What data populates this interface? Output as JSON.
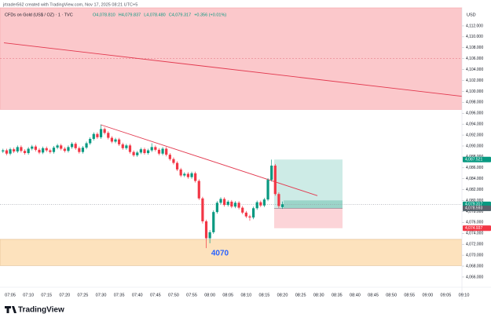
{
  "chart_data": {
    "type": "candlestick",
    "header": "jrtrader562 created with TradingView.com, Nov 17, 2025 08:21 UTC+5",
    "title": "CFDs on Gold (US$ / OZ) · 1 · TVC",
    "ohlc_labels": [
      "O4,078.810",
      "H4,079.837",
      "L4,078.480",
      "C4,079.317",
      "+0.356 (+0.01%)"
    ],
    "currency": "USD",
    "brand": "TradingView",
    "up_color": "#089981",
    "down_color": "#f23645",
    "categories": [
      null,
      null,
      "07:05",
      null,
      null,
      null,
      null,
      "07:10",
      null,
      null,
      null,
      null,
      "07:15",
      null,
      null,
      null,
      null,
      "07:20",
      null,
      null,
      null,
      null,
      "07:25",
      null,
      null,
      null,
      null,
      "07:30",
      null,
      null,
      null,
      null,
      "07:35",
      null,
      null,
      null,
      null,
      "07:40",
      null,
      null,
      null,
      null,
      "07:45",
      null,
      null,
      null,
      null,
      "07:50",
      null,
      null,
      null,
      null,
      "07:55",
      null,
      null,
      null,
      null,
      "08:00",
      null,
      null,
      null,
      null,
      "08:05",
      null,
      null,
      null,
      null,
      "08:10",
      null,
      null,
      null,
      null,
      "08:15",
      null,
      null,
      null,
      null,
      "08:20",
      null,
      null,
      null,
      null,
      "08:25",
      null,
      null,
      null,
      null,
      "08:30",
      null,
      null,
      null,
      null,
      "08:35",
      null,
      null,
      null,
      null,
      "08:40",
      null,
      null,
      null,
      null,
      "08:45",
      null,
      null,
      null,
      null,
      "08:50",
      null,
      null,
      null,
      null,
      "08:55",
      null,
      null,
      null,
      null,
      "09:00",
      null,
      null,
      null,
      null,
      "09:05",
      null,
      null,
      null,
      null,
      "09:10"
    ],
    "open": [
      4089.0,
      4089.2,
      4088.6,
      4089.4,
      4089.0,
      4089.8,
      4089.1,
      4088.7,
      4089.5,
      4089.9,
      4089.3,
      4088.8,
      4089.6,
      4089.2,
      4088.9,
      4089.7,
      4090.1,
      4089.5,
      4089.1,
      4089.8,
      4090.4,
      4089.6,
      4088.9,
      4089.7,
      4090.5,
      4091.3,
      4092.2,
      4091.6,
      4093.1,
      4092.4,
      4091.5,
      4090.8,
      4091.2,
      4090.3,
      4089.6,
      4090.1,
      4088.9,
      4088.3,
      4088.8,
      4089.4,
      4088.7,
      4089.2,
      4089.8,
      4089.3,
      4088.6,
      4089.5,
      4088.4,
      4087.6,
      4086.9,
      4085.7,
      4084.6,
      4084.9,
      4084.3,
      4085.0,
      4083.6,
      4080.4,
      4076.2,
      4073.1,
      4074.2,
      4077.9,
      4079.6,
      4080.3,
      4079.2,
      4079.8,
      4078.9,
      4079.6,
      4078.7,
      4077.8,
      4077.1,
      4076.9,
      4078.6,
      4079.7,
      4079.1,
      4080.2,
      4083.8,
      4086.4,
      4081.2,
      4078.81,
      null,
      null,
      null,
      null,
      null,
      null,
      null,
      null,
      null,
      null,
      null,
      null,
      null,
      null,
      null,
      null,
      null,
      null,
      null,
      null,
      null,
      null,
      null,
      null,
      null,
      null,
      null,
      null,
      null,
      null,
      null,
      null,
      null,
      null,
      null,
      null,
      null,
      null,
      null,
      null,
      null,
      null,
      null,
      null,
      null,
      null,
      null,
      null,
      null,
      null
    ],
    "high": [
      4089.5,
      4089.5,
      4089.7,
      4089.7,
      4090.1,
      4090.1,
      4089.4,
      4089.8,
      4090.2,
      4090.2,
      4089.6,
      4089.9,
      4089.9,
      4089.5,
      4090.0,
      4090.4,
      4090.4,
      4089.8,
      4090.1,
      4090.7,
      4090.7,
      4089.9,
      4090.0,
      4090.8,
      4091.6,
      4092.5,
      4092.5,
      4093.9,
      4093.4,
      4092.7,
      4091.8,
      4091.5,
      4091.5,
      4090.6,
      4090.4,
      4090.4,
      4089.2,
      4089.1,
      4089.7,
      4089.7,
      4089.5,
      4090.5,
      4090.1,
      4089.6,
      4089.8,
      4089.8,
      4088.7,
      4087.9,
      4087.2,
      4086.0,
      4085.2,
      4085.2,
      4085.3,
      4085.3,
      4083.9,
      4080.7,
      4076.5,
      4074.6,
      4078.2,
      4079.9,
      4080.6,
      4080.6,
      4080.1,
      4080.1,
      4079.9,
      4079.9,
      4079.0,
      4078.1,
      4077.4,
      4078.9,
      4080.0,
      4080.0,
      4080.5,
      4084.1,
      4087.5,
      4086.7,
      4081.5,
      4079.837,
      null,
      null,
      null,
      null,
      null,
      null,
      null,
      null,
      null,
      null,
      null,
      null,
      null,
      null,
      null,
      null,
      null,
      null,
      null,
      null,
      null,
      null,
      null,
      null,
      null,
      null,
      null,
      null,
      null,
      null,
      null,
      null,
      null,
      null,
      null,
      null,
      null,
      null,
      null,
      null,
      null,
      null,
      null,
      null,
      null,
      null,
      null,
      null,
      null,
      null
    ],
    "low": [
      4088.7,
      4088.3,
      4088.3,
      4088.7,
      4088.7,
      4088.8,
      4088.4,
      4088.4,
      4089.2,
      4089.0,
      4088.5,
      4088.5,
      4088.9,
      4088.6,
      4088.6,
      4089.4,
      4089.2,
      4088.8,
      4088.8,
      4089.5,
      4089.3,
      4088.6,
      4088.6,
      4089.4,
      4090.2,
      4091.0,
      4091.3,
      4091.3,
      4092.1,
      4091.2,
      4090.5,
      4090.5,
      4090.0,
      4089.3,
      4089.3,
      4088.6,
      4088.0,
      4088.0,
      4088.5,
      4088.4,
      4088.4,
      4088.9,
      4089.0,
      4088.3,
      4088.3,
      4088.1,
      4087.3,
      4086.6,
      4085.4,
      4084.3,
      4084.3,
      4084.0,
      4084.0,
      4083.3,
      4080.1,
      4075.8,
      4071.3,
      4072.2,
      4073.9,
      4077.6,
      4079.3,
      4078.9,
      4078.9,
      4078.6,
      4078.6,
      4078.4,
      4077.5,
      4076.8,
      4076.3,
      4076.6,
      4078.3,
      4078.8,
      4078.8,
      4079.9,
      4083.5,
      4080.9,
      4078.6,
      4078.48,
      null,
      null,
      null,
      null,
      null,
      null,
      null,
      null,
      null,
      null,
      null,
      null,
      null,
      null,
      null,
      null,
      null,
      null,
      null,
      null,
      null,
      null,
      null,
      null,
      null,
      null,
      null,
      null,
      null,
      null,
      null,
      null,
      null,
      null,
      null,
      null,
      null,
      null,
      null,
      null,
      null,
      null,
      null,
      null,
      null,
      null,
      null,
      null,
      null,
      null
    ],
    "close": [
      4089.2,
      4088.6,
      4089.4,
      4089.0,
      4089.8,
      4089.1,
      4088.7,
      4089.5,
      4089.9,
      4089.3,
      4088.8,
      4089.6,
      4089.2,
      4088.9,
      4089.7,
      4090.1,
      4089.5,
      4089.1,
      4089.8,
      4090.4,
      4089.6,
      4088.9,
      4089.7,
      4090.5,
      4091.3,
      4092.2,
      4091.6,
      4093.1,
      4092.4,
      4091.5,
      4090.8,
      4091.2,
      4090.3,
      4089.6,
      4090.1,
      4088.9,
      4088.3,
      4088.8,
      4089.4,
      4088.7,
      4089.2,
      4089.8,
      4089.3,
      4088.6,
      4089.5,
      4088.4,
      4087.6,
      4086.9,
      4085.7,
      4084.6,
      4084.9,
      4084.3,
      4085.0,
      4083.6,
      4080.4,
      4076.2,
      4073.1,
      4074.2,
      4077.9,
      4079.6,
      4080.3,
      4079.2,
      4079.8,
      4078.9,
      4079.6,
      4078.7,
      4077.8,
      4077.1,
      4076.9,
      4078.6,
      4079.7,
      4079.1,
      4080.2,
      4083.8,
      4086.4,
      4081.2,
      4079.0,
      4079.317,
      null,
      null,
      null,
      null,
      null,
      null,
      null,
      null,
      null,
      null,
      null,
      null,
      null,
      null,
      null,
      null,
      null,
      null,
      null,
      null,
      null,
      null,
      null,
      null,
      null,
      null,
      null,
      null,
      null,
      null,
      null,
      null,
      null,
      null,
      null,
      null,
      null,
      null,
      null,
      null,
      null,
      null,
      null,
      null,
      null,
      null,
      null,
      null,
      null,
      null
    ],
    "ylim": [
      4064.7,
      4115.3
    ],
    "yticks": [
      {
        "value": 4066,
        "label": "4,066.000"
      },
      {
        "value": 4068,
        "label": "4,068.000"
      },
      {
        "value": 4070,
        "label": "4,070.000"
      },
      {
        "value": 4072,
        "label": "4,072.000"
      },
      {
        "value": 4074,
        "label": "4,074.000"
      },
      {
        "value": 4076,
        "label": "4,076.000"
      },
      {
        "value": 4078,
        "label": "4,078.000"
      },
      {
        "value": 4080,
        "label": "4,080.000"
      },
      {
        "value": 4082,
        "label": "4,082.000"
      },
      {
        "value": 4084,
        "label": "4,084.000"
      },
      {
        "value": 4086,
        "label": "4,086.000"
      },
      {
        "value": 4088,
        "label": "4,088.000"
      },
      {
        "value": 4090,
        "label": "4,090.000"
      },
      {
        "value": 4092,
        "label": "4,092.000"
      },
      {
        "value": 4094,
        "label": "4,094.000"
      },
      {
        "value": 4096,
        "label": "4,096.000"
      },
      {
        "value": 4098,
        "label": "4,098.000"
      },
      {
        "value": 4100,
        "label": "4,100.000"
      },
      {
        "value": 4102,
        "label": "4,102.000"
      },
      {
        "value": 4104,
        "label": "4,104.000"
      },
      {
        "value": 4106,
        "label": "4,106.000"
      },
      {
        "value": 4108,
        "label": "4,108.000"
      },
      {
        "value": 4110,
        "label": "4,110.000"
      },
      {
        "value": 4112,
        "label": "4,112.000"
      }
    ],
    "zones": [
      {
        "from": 4096.7,
        "to": 4115.3,
        "color": "#fbc8cb",
        "border": "#f5a3a9"
      },
      {
        "from": 4068.1,
        "to": 4072.9,
        "color": "#fde2bd",
        "border": "#e0b98a"
      }
    ],
    "levels": [
      {
        "value": 4106,
        "color": "#e57f8a"
      }
    ],
    "trendlines": [
      {
        "from": 4108.9,
        "to": 4099.1,
        "color": "#e2394f"
      },
      {
        "from": 4093.9,
        "to": 4080.9,
        "color": "#e2394f"
      }
    ],
    "position": {
      "target": 4087.521,
      "entry": 4078.593,
      "stop": 4074.937
    },
    "price_labels": [
      {
        "value": 4087.521,
        "label": "4,087.521",
        "color": "#089981"
      },
      {
        "value": 4079.317,
        "label": "4,079.317",
        "color": "#089981"
      },
      {
        "value": 4078.593,
        "label": "4,078.593",
        "color": "#5d606b"
      },
      {
        "value": 4074.937,
        "label": "4,074.937",
        "color": "#f23645"
      }
    ],
    "countdown": "00:49",
    "annotation": "4070"
  }
}
